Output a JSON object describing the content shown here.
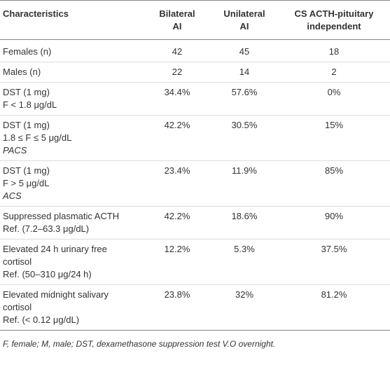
{
  "table": {
    "header": [
      [
        "Characteristics"
      ],
      [
        "Bilateral",
        "AI"
      ],
      [
        "Unilateral",
        "AI"
      ],
      [
        "CS ACTH-pituitary",
        "independent"
      ]
    ],
    "rows": [
      {
        "label": [
          {
            "text": "Females (n)"
          }
        ],
        "values": [
          "42",
          "45",
          "18"
        ]
      },
      {
        "label": [
          {
            "text": "Males (n)"
          }
        ],
        "values": [
          "22",
          "14",
          "2"
        ]
      },
      {
        "label": [
          {
            "text": "DST (1 mg)"
          },
          {
            "text": "F < 1.8 μg/dL"
          }
        ],
        "values": [
          "34.4%",
          "57.6%",
          "0%"
        ]
      },
      {
        "label": [
          {
            "text": "DST (1 mg)"
          },
          {
            "text": "1.8 ≤ F ≤ 5 μg/dL"
          },
          {
            "text": "PACS",
            "italic": true
          }
        ],
        "values": [
          "42.2%",
          "30.5%",
          "15%"
        ]
      },
      {
        "label": [
          {
            "text": "DST (1 mg)"
          },
          {
            "text": "F > 5 μg/dL"
          },
          {
            "text": "ACS",
            "italic": true
          }
        ],
        "values": [
          "23.4%",
          "11.9%",
          "85%"
        ]
      },
      {
        "label": [
          {
            "text": "Suppressed plasmatic ACTH"
          },
          {
            "text": "Ref. (7.2–63.3 μg/dL)"
          }
        ],
        "values": [
          "42.2%",
          "18.6%",
          "90%"
        ]
      },
      {
        "label": [
          {
            "text": "Elevated 24 h urinary free"
          },
          {
            "text": "cortisol"
          },
          {
            "text": "Ref. (50–310 μg/24 h)"
          }
        ],
        "values": [
          "12.2%",
          "5.3%",
          "37.5%"
        ]
      },
      {
        "label": [
          {
            "text": "Elevated midnight salivary"
          },
          {
            "text": "cortisol"
          },
          {
            "text": "Ref. (< 0.12 μg/dL)"
          }
        ],
        "values": [
          "23.8%",
          "32%",
          "81.2%"
        ]
      }
    ]
  },
  "footnote": "F, female; M, male; DST, dexamethasone suppression test V.O overnight."
}
